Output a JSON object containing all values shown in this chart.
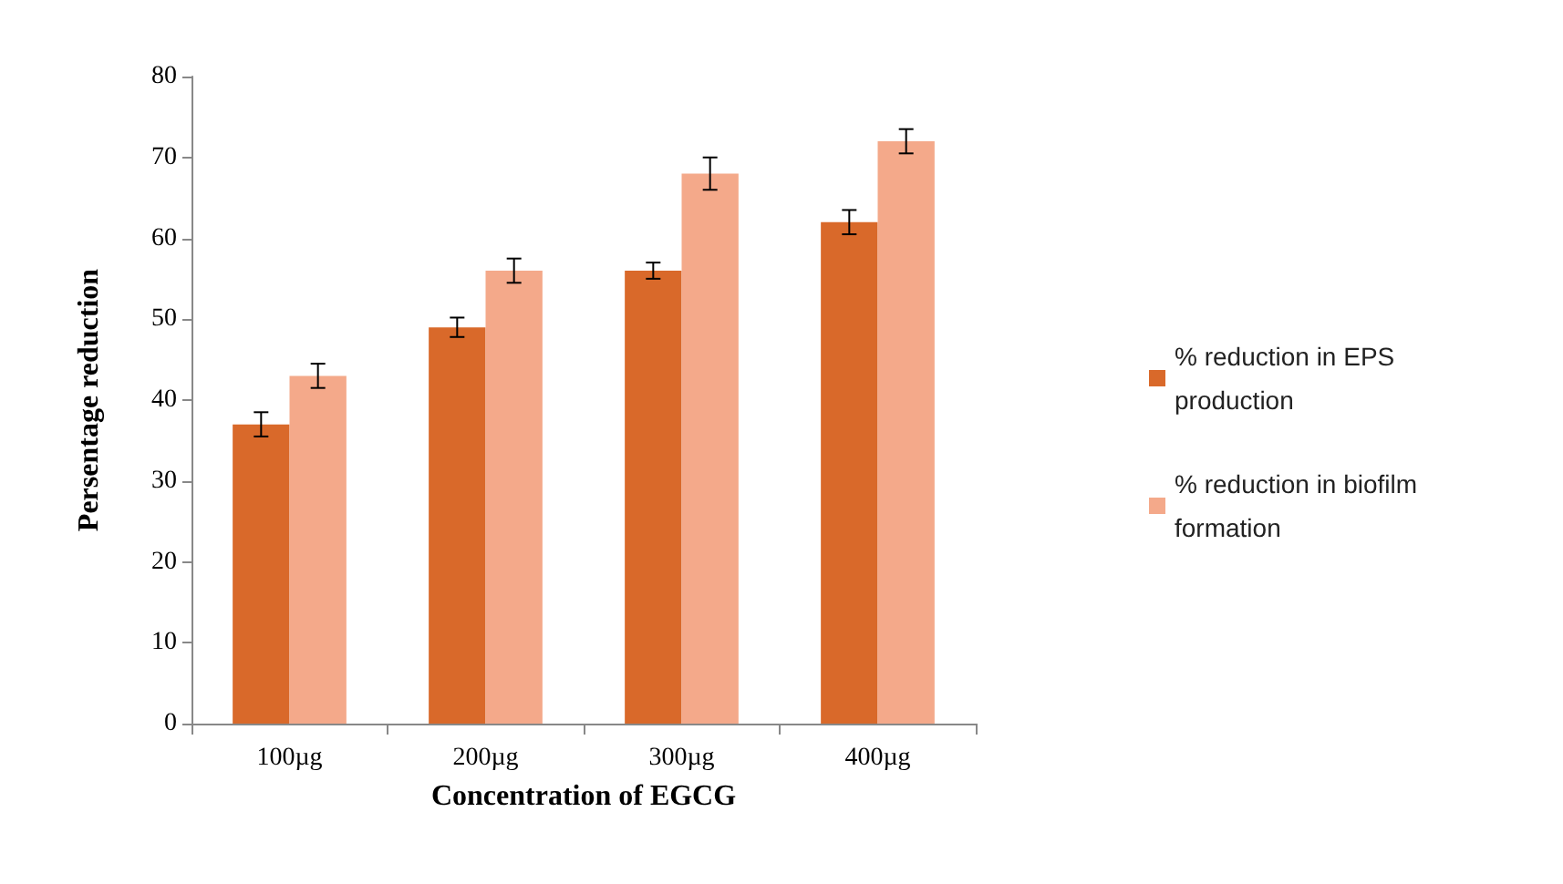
{
  "chart_data": {
    "type": "bar",
    "xlabel": "Concentration of EGCG",
    "ylabel": "Persentage reduction",
    "categories": [
      "100µg",
      "200µg",
      "300µg",
      "400µg"
    ],
    "series": [
      {
        "name": "% reduction in EPS production",
        "color": "#d9692a",
        "values": [
          37,
          49,
          56,
          62
        ],
        "errors": [
          1.5,
          1.2,
          1,
          1.5
        ]
      },
      {
        "name": "% reduction in biofilm formation",
        "color": "#f4a98a",
        "values": [
          43,
          56,
          68,
          72
        ],
        "errors": [
          1.5,
          1.5,
          2,
          1.5
        ]
      }
    ],
    "ylim": [
      0,
      80
    ],
    "yticks": [
      0,
      10,
      20,
      30,
      40,
      50,
      60,
      70,
      80
    ],
    "grid": false,
    "legend": "right"
  }
}
